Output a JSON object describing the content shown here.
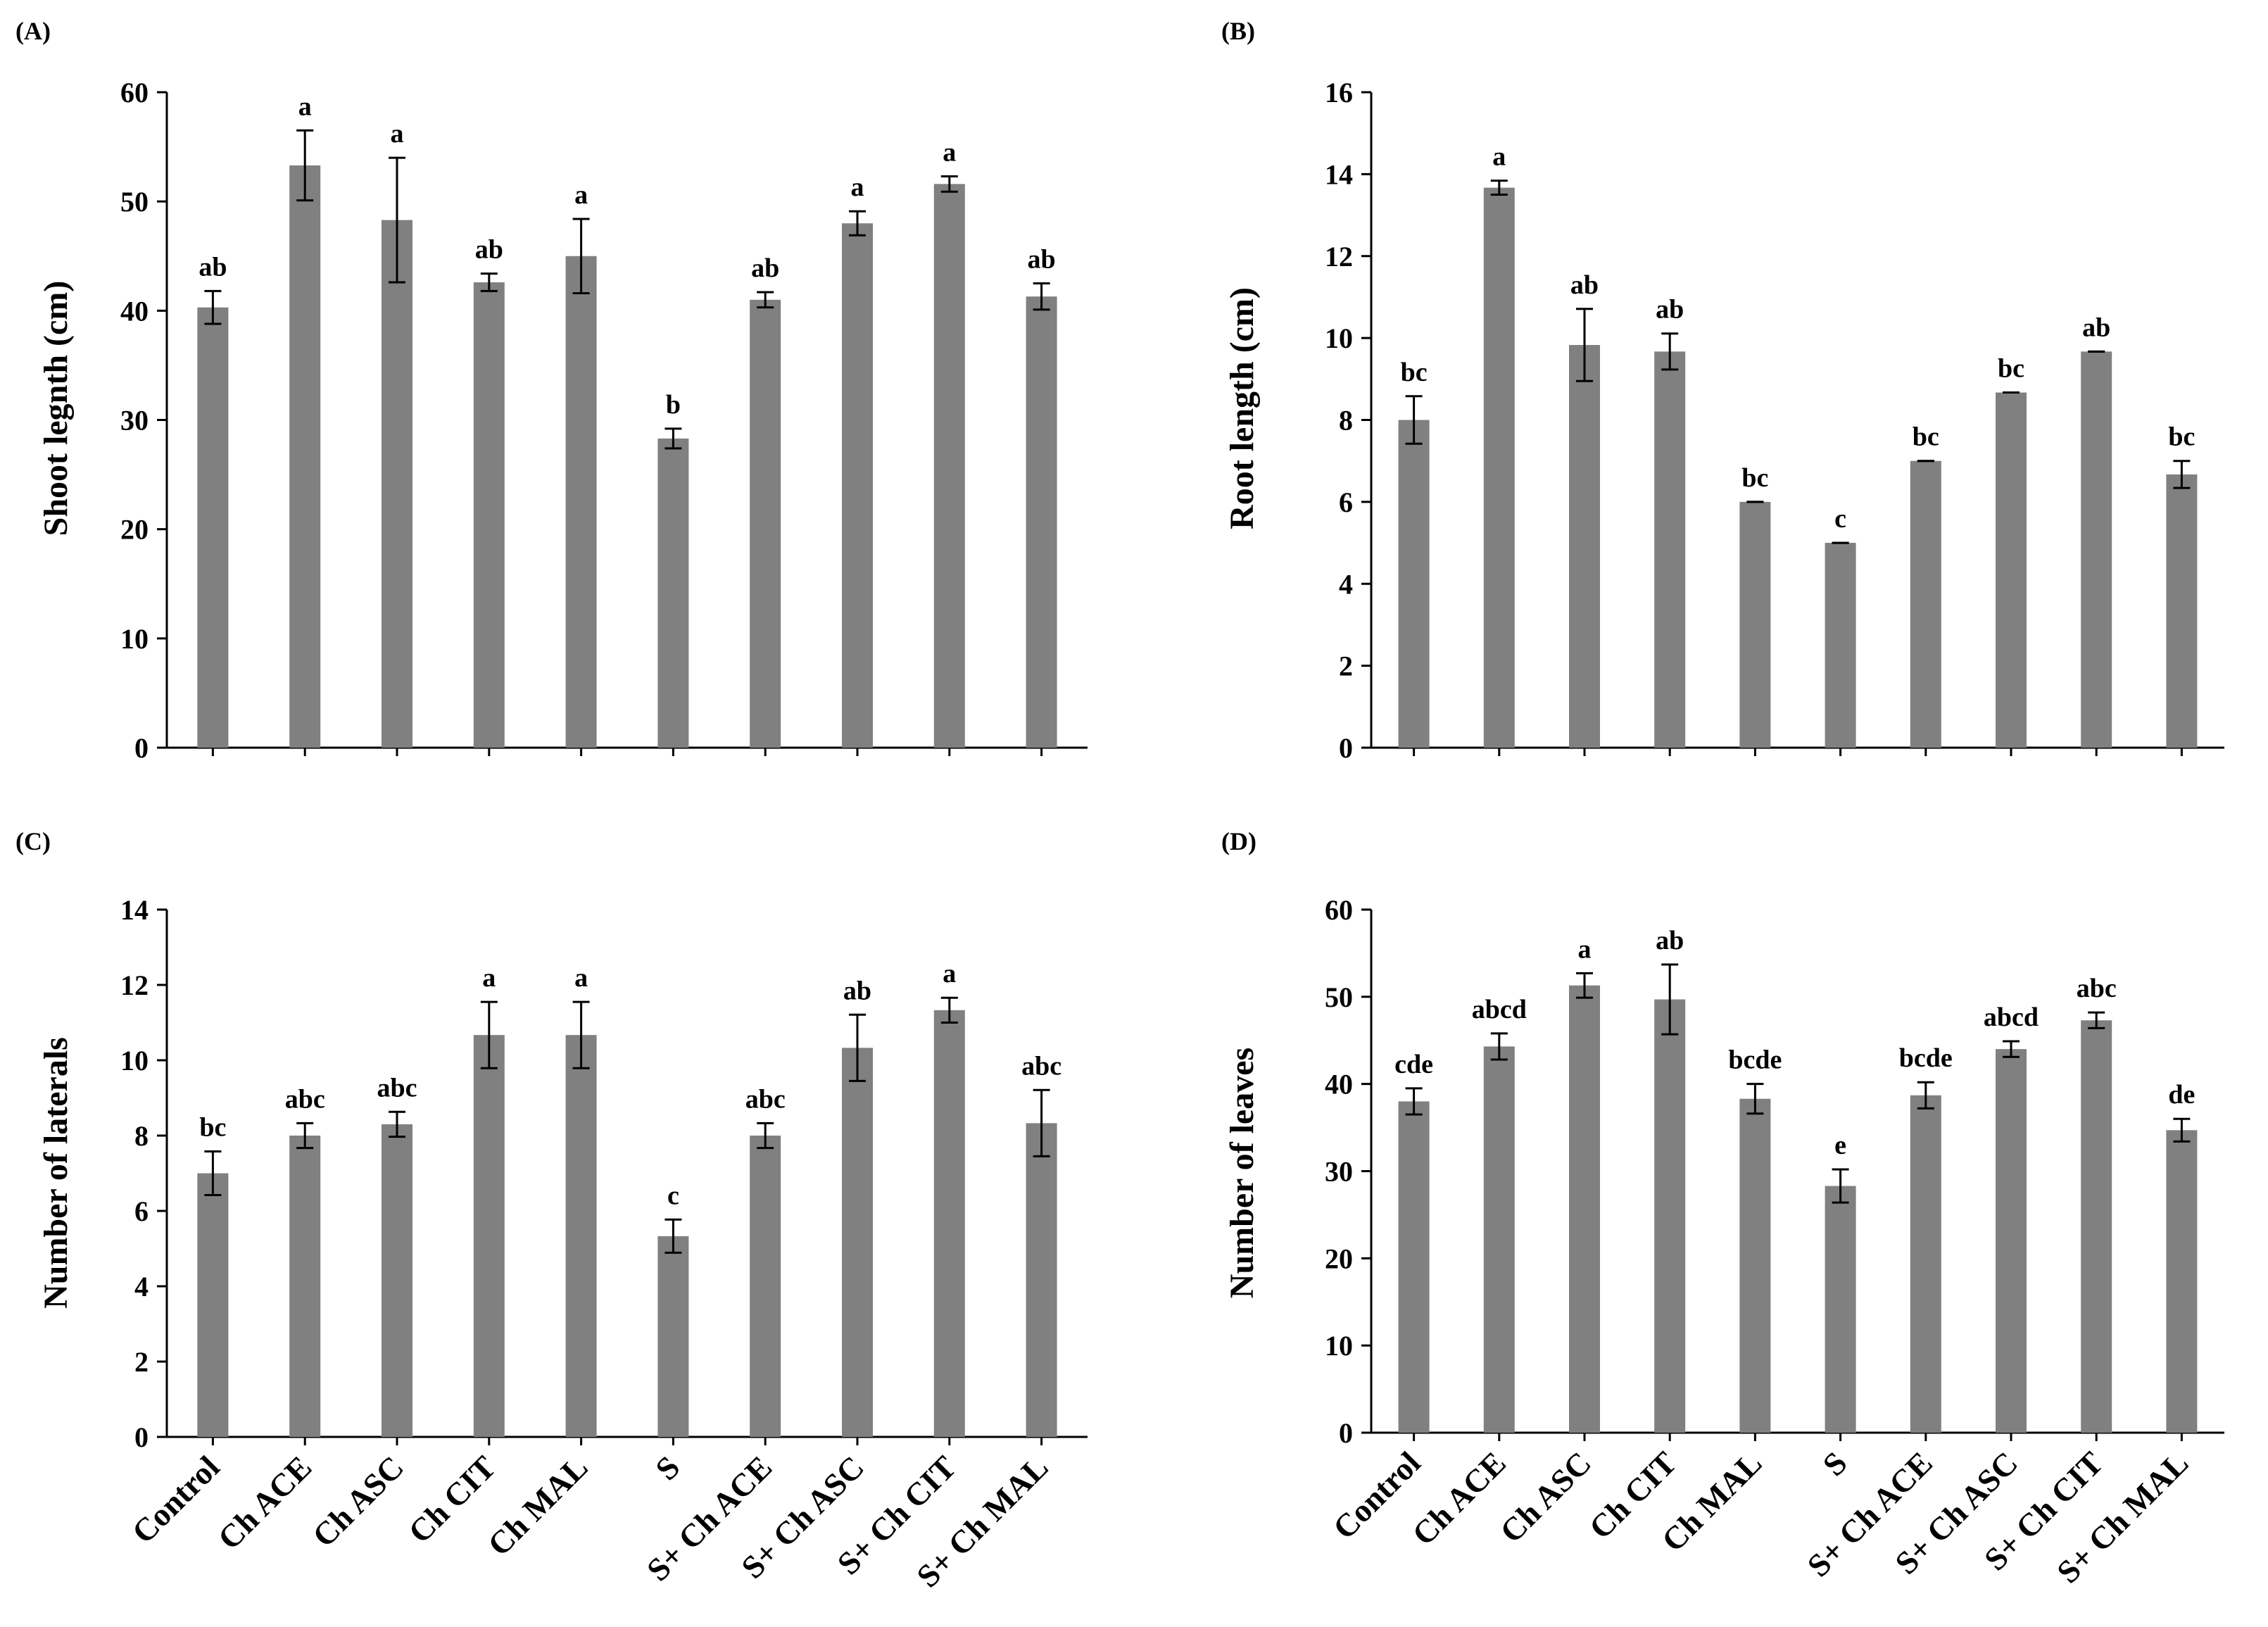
{
  "chart_data": [
    {
      "type": "bar",
      "panel": "(A)",
      "ylabel": "Shoot legnth (cm)",
      "xlabel": "",
      "ylim": [
        0,
        60
      ],
      "yticks": [
        0,
        10,
        20,
        30,
        40,
        50,
        60
      ],
      "categories": [
        "Control",
        "Ch ACE",
        "Ch ASC",
        "Ch CIT",
        "Ch MAL",
        "S",
        "S+ Ch ACE",
        "S+ Ch ASC",
        "S+ Ch CIT",
        "S+ Ch MAL"
      ],
      "values": [
        40.3,
        53.3,
        48.3,
        42.6,
        45.0,
        28.3,
        41.0,
        48.0,
        51.6,
        41.3
      ],
      "errors": [
        1.5,
        3.2,
        5.7,
        0.8,
        3.4,
        0.9,
        0.7,
        1.1,
        0.7,
        1.2
      ],
      "labels": [
        "ab",
        "a",
        "a",
        "ab",
        "a",
        "b",
        "ab",
        "a",
        "a",
        "ab"
      ]
    },
    {
      "type": "bar",
      "panel": "(B)",
      "ylabel": "Root length (cm)",
      "xlabel": "",
      "ylim": [
        0,
        16
      ],
      "yticks": [
        0,
        2,
        4,
        6,
        8,
        10,
        12,
        14,
        16
      ],
      "categories": [
        "Control",
        "Ch ACE",
        "Ch ASC",
        "Ch CIT",
        "Ch MAL",
        "S",
        "S+ Ch ACE",
        "S+ Ch ASC",
        "S+ Ch CIT",
        "S+ Ch MAL"
      ],
      "values": [
        8.0,
        13.67,
        9.83,
        9.67,
        6.0,
        5.0,
        7.0,
        8.67,
        9.67,
        6.67
      ],
      "errors": [
        0.58,
        0.17,
        0.88,
        0.44,
        0.0,
        0.0,
        0.0,
        0.0,
        0.0,
        0.33
      ],
      "labels": [
        "bc",
        "a",
        "ab",
        "ab",
        "bc",
        "c",
        "bc",
        "bc",
        "ab",
        "bc"
      ]
    },
    {
      "type": "bar",
      "panel": "(C)",
      "ylabel": "Number of laterals",
      "xlabel": "",
      "ylim": [
        0,
        14
      ],
      "yticks": [
        0,
        2,
        4,
        6,
        8,
        10,
        12,
        14
      ],
      "categories": [
        "Control",
        "Ch ACE",
        "Ch ASC",
        "Ch CIT",
        "Ch MAL",
        "S",
        "S+ Ch ACE",
        "S+ Ch ASC",
        "S+ Ch CIT",
        "S+ Ch MAL"
      ],
      "values": [
        7.0,
        8.0,
        8.3,
        10.67,
        10.67,
        5.33,
        8.0,
        10.33,
        11.33,
        8.33
      ],
      "errors": [
        0.58,
        0.33,
        0.33,
        0.88,
        0.88,
        0.44,
        0.33,
        0.88,
        0.33,
        0.88
      ],
      "labels": [
        "bc",
        "abc",
        "abc",
        "a",
        "a",
        "c",
        "abc",
        "ab",
        "a",
        "abc"
      ]
    },
    {
      "type": "bar",
      "panel": "(D)",
      "ylabel": "Number of leaves",
      "xlabel": "",
      "ylim": [
        0,
        60
      ],
      "yticks": [
        0,
        10,
        20,
        30,
        40,
        50,
        60
      ],
      "categories": [
        "Control",
        "Ch ACE",
        "Ch ASC",
        "Ch CIT",
        "Ch MAL",
        "S",
        "S+ Ch ACE",
        "S+ Ch ASC",
        "S+ Ch CIT",
        "S+ Ch MAL"
      ],
      "values": [
        38.0,
        44.3,
        51.3,
        49.7,
        38.3,
        28.3,
        38.7,
        44.0,
        47.3,
        34.7
      ],
      "errors": [
        1.5,
        1.5,
        1.4,
        4.0,
        1.7,
        1.9,
        1.5,
        0.9,
        0.9,
        1.3
      ],
      "labels": [
        "cde",
        "abcd",
        "a",
        "ab",
        "bcde",
        "e",
        "bcde",
        "abcd",
        "abc",
        "de"
      ]
    }
  ]
}
